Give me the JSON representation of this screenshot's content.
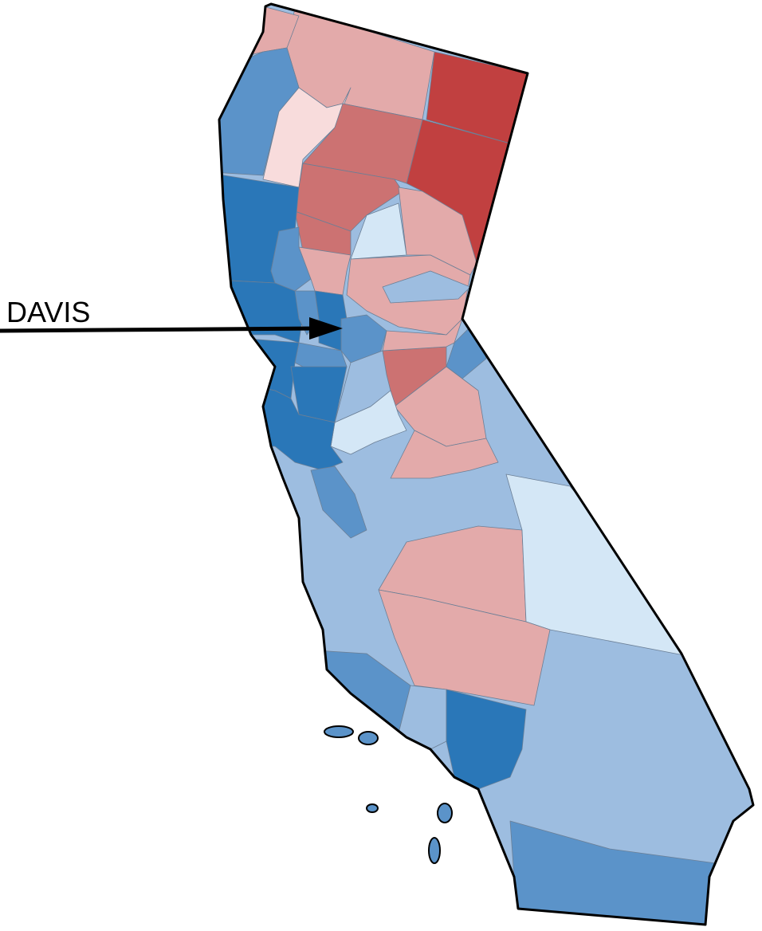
{
  "annotation": {
    "label": "DAVIS"
  }
}
